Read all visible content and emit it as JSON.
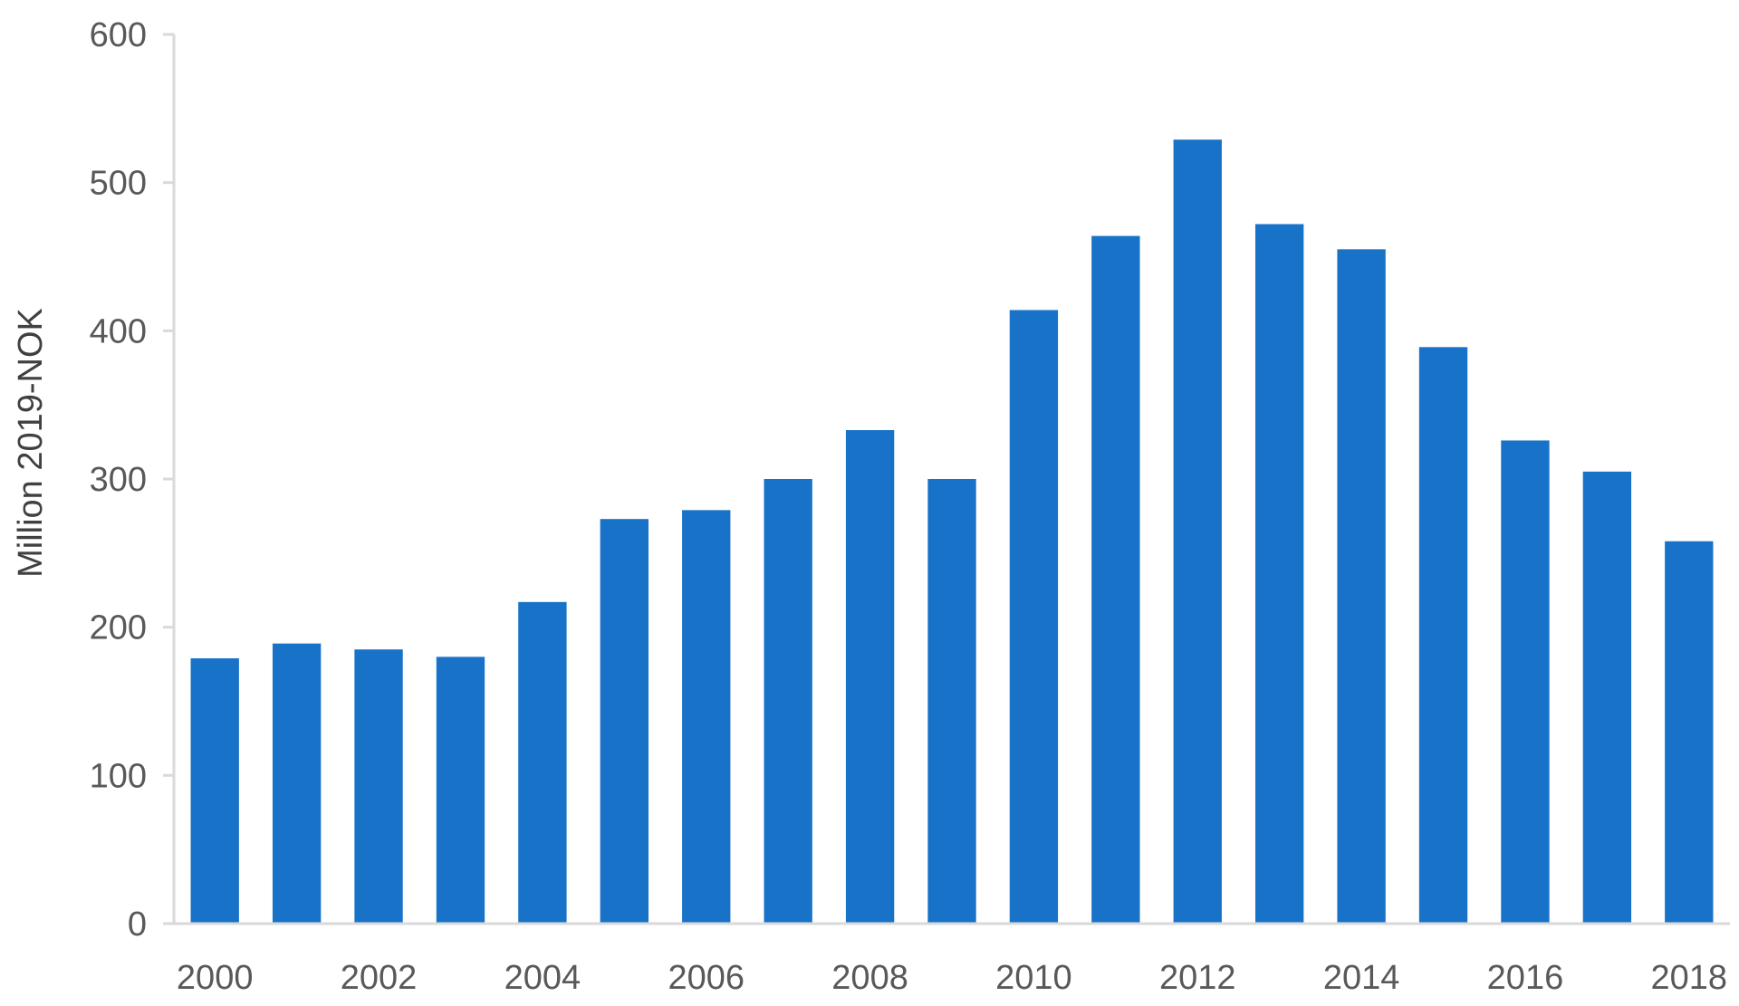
{
  "chart_data": {
    "type": "bar",
    "title": "",
    "xlabel": "",
    "ylabel": "Million 2019-NOK",
    "ylim": [
      0,
      600
    ],
    "yticks": [
      "0",
      "100",
      "200",
      "300",
      "400",
      "500",
      "600"
    ],
    "xtick_labels": [
      "2000",
      "2002",
      "2004",
      "2006",
      "2008",
      "2010",
      "2012",
      "2014",
      "2016",
      "2018"
    ],
    "categories": [
      "2000",
      "2001",
      "2002",
      "2003",
      "2004",
      "2005",
      "2006",
      "2007",
      "2008",
      "2009",
      "2010",
      "2011",
      "2012",
      "2013",
      "2014",
      "2015",
      "2016",
      "2017",
      "2018"
    ],
    "values": [
      179,
      189,
      185,
      180,
      217,
      273,
      279,
      300,
      333,
      300,
      414,
      464,
      529,
      472,
      455,
      389,
      326,
      305,
      258
    ],
    "bar_color": "#1873c8",
    "grid": false,
    "legend": "none"
  }
}
